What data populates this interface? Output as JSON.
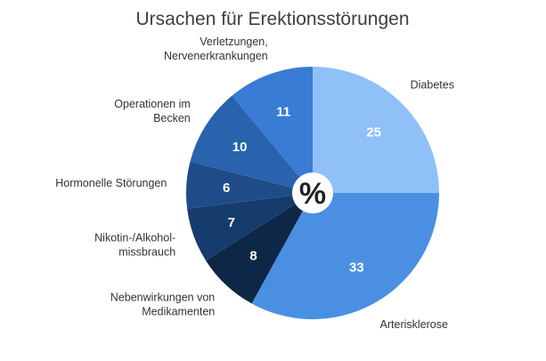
{
  "chart_data": {
    "type": "pie",
    "title": "Ursachen für Erektionsstörungen",
    "center_symbol": "%",
    "start_angle_deg": 0,
    "direction": "clockwise",
    "slices": [
      {
        "label": [
          "Diabetes"
        ],
        "value": 25,
        "value_text": "25",
        "color": "#8fc0f7"
      },
      {
        "label": [
          "Arterisklerose"
        ],
        "value": 33,
        "value_text": "33",
        "color": "#4a8fe2"
      },
      {
        "label": [
          "Nebenwirkungen von",
          "Medikamenten"
        ],
        "value": 8,
        "value_text": "8",
        "color": "#0e2747"
      },
      {
        "label": [
          "Nikotin-/Alkohol-",
          "missbrauch"
        ],
        "value": 7,
        "value_text": "7",
        "color": "#163c6d"
      },
      {
        "label": [
          "Hormonelle Störungen"
        ],
        "value": 6,
        "value_text": "6",
        "color": "#1f4c88"
      },
      {
        "label": [
          "Operationen  im",
          "Becken"
        ],
        "value": 10,
        "value_text": "10",
        "color": "#2962ad"
      },
      {
        "label": [
          "Verletzungen,",
          "Nervenerkrankungen"
        ],
        "value": 11,
        "value_text": "11",
        "color": "#3a7bd5"
      }
    ]
  }
}
